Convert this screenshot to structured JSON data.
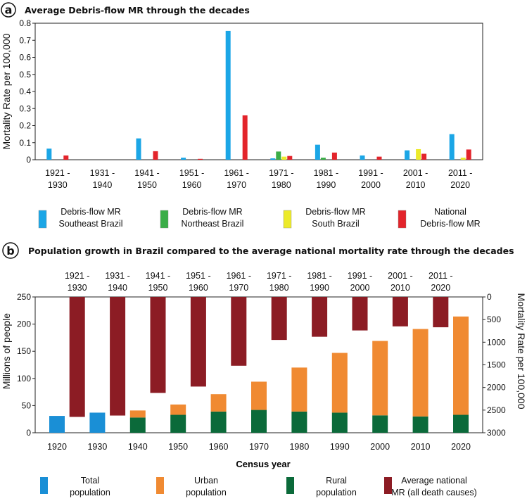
{
  "panel_a": {
    "letter": "a",
    "chart_data": {
      "type": "bar",
      "title": "Average Debris-flow MR through the decades",
      "ylabel": "Mortality Rate per 100,000",
      "xlabel": "",
      "ylim": [
        0,
        0.8
      ],
      "yticks": [
        "0",
        "0.1",
        "0.2",
        "0.3",
        "0.4",
        "0.5",
        "0.6",
        "0.7",
        "0.8"
      ],
      "categories": [
        [
          "1921 -",
          "1930"
        ],
        [
          "1931 -",
          "1940"
        ],
        [
          "1941 -",
          "1950"
        ],
        [
          "1951 -",
          "1960"
        ],
        [
          "1961 -",
          "1970"
        ],
        [
          "1971 -",
          "1980"
        ],
        [
          "1981 -",
          "1990"
        ],
        [
          "1991 -",
          "2000"
        ],
        [
          "2001 -",
          "2010"
        ],
        [
          "2011 -",
          "2020"
        ]
      ],
      "series": [
        {
          "name": [
            "Debris-flow MR",
            "Southeast Brazil"
          ],
          "color": "#1ba6e6",
          "values": [
            0.065,
            0,
            0.125,
            0.012,
            0.755,
            0.008,
            0.088,
            0.025,
            0.055,
            0.15
          ]
        },
        {
          "name": [
            "Debris-flow MR",
            "Northeast Brazil"
          ],
          "color": "#3bad48",
          "values": [
            0,
            0,
            0,
            0,
            0,
            0.048,
            0.012,
            0,
            0,
            0
          ]
        },
        {
          "name": [
            "Debris-flow MR",
            "South Brazil"
          ],
          "color": "#ecea2a",
          "values": [
            0,
            0,
            0,
            0,
            0,
            0.018,
            0,
            0,
            0.062,
            0.012
          ]
        },
        {
          "name": [
            "National",
            "Debris-flow MR"
          ],
          "color": "#e3242b",
          "values": [
            0.025,
            0,
            0.05,
            0.005,
            0.26,
            0.022,
            0.042,
            0.018,
            0.035,
            0.06
          ]
        }
      ]
    }
  },
  "panel_b": {
    "letter": "b",
    "chart_data": {
      "type": "bar",
      "title": "Population growth in Brazil compared to the average national mortality rate through the decades",
      "xlabel": "Census year",
      "ylabel": "Millions of people",
      "y2label": "Mortality Rate per 100,000",
      "ylim": [
        0,
        250
      ],
      "y2lim": [
        0,
        3000
      ],
      "y2_inverted": true,
      "yticks": [
        "0",
        "50",
        "100",
        "150",
        "200",
        "250"
      ],
      "y2ticks": [
        "0",
        "500",
        "1000",
        "1500",
        "2000",
        "2500",
        "3000"
      ],
      "census_years": [
        "1920",
        "1930",
        "1940",
        "1950",
        "1960",
        "1970",
        "1980",
        "1990",
        "2000",
        "2010",
        "2020"
      ],
      "total_population": [
        31,
        37,
        null,
        null,
        null,
        null,
        null,
        null,
        null,
        null,
        null
      ],
      "urban_population": [
        null,
        null,
        13,
        19,
        32,
        52,
        81,
        110,
        137,
        161,
        181
      ],
      "rural_population": [
        null,
        null,
        28,
        33,
        39,
        42,
        39,
        37,
        32,
        30,
        33
      ],
      "decades": [
        [
          "1921 -",
          "1930"
        ],
        [
          "1931 -",
          "1940"
        ],
        [
          "1941 -",
          "1950"
        ],
        [
          "1951 -",
          "1960"
        ],
        [
          "1961 -",
          "1970"
        ],
        [
          "1971 -",
          "1980"
        ],
        [
          "1981 -",
          "1990"
        ],
        [
          "1991 -",
          "2000"
        ],
        [
          "2001 -",
          "2010"
        ],
        [
          "2011 -",
          "2020"
        ]
      ],
      "avg_national_mr": [
        2650,
        2620,
        2120,
        1980,
        1520,
        950,
        880,
        740,
        650,
        670
      ],
      "legend": [
        {
          "label": [
            "Total",
            "population"
          ],
          "color": "#1a8fd6"
        },
        {
          "label": [
            "Urban",
            "population"
          ],
          "color": "#f08a32"
        },
        {
          "label": [
            "Rural",
            "population"
          ],
          "color": "#0b6a3a"
        },
        {
          "label": [
            "Average national",
            "MR (all death causes)"
          ],
          "color": "#8c1c24"
        }
      ]
    }
  }
}
